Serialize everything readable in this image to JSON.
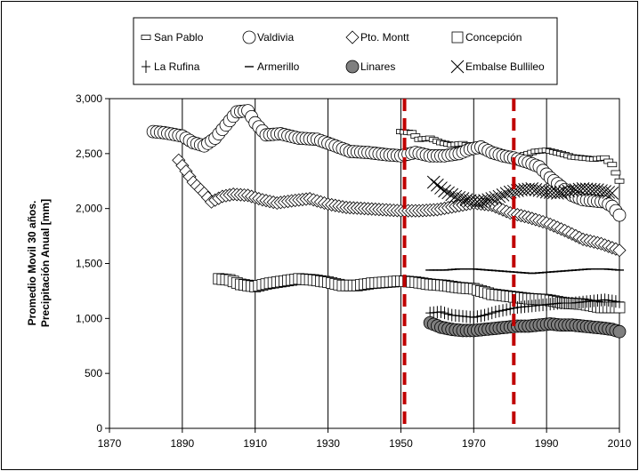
{
  "chart_data": {
    "type": "scatter",
    "title": "",
    "xlabel": "",
    "ylabel": [
      "Promedio Movil 30 años.",
      "Precipitación Anual [mm]"
    ],
    "xlim": [
      1870,
      2010
    ],
    "ylim": [
      0,
      3000
    ],
    "x_ticks": [
      "1870",
      "1890",
      "1910",
      "1930",
      "1950",
      "1970",
      "1990",
      "2010"
    ],
    "y_ticks": [
      "0",
      "500",
      "1,000",
      "1,500",
      "2,000",
      "2,500",
      "3,000"
    ],
    "x_tick_values": [
      1870,
      1890,
      1910,
      1930,
      1950,
      1970,
      1990,
      2010
    ],
    "y_tick_values": [
      0,
      500,
      1000,
      1500,
      2000,
      2500,
      3000
    ],
    "grid": "vertical",
    "legend_position": "top",
    "reference_lines": [
      {
        "x": 1951,
        "color": "#c00000",
        "style": "dashed"
      },
      {
        "x": 1981,
        "color": "#c00000",
        "style": "dashed"
      }
    ],
    "series": [
      {
        "name": "San Pablo",
        "marker": "dash-box",
        "x_start": 1950,
        "x_end": 2010,
        "keys": [
          [
            1950,
            2700
          ],
          [
            1953,
            2690
          ],
          [
            1955,
            2630
          ],
          [
            1958,
            2640
          ],
          [
            1961,
            2600
          ],
          [
            1964,
            2580
          ],
          [
            1967,
            2590
          ],
          [
            1970,
            2560
          ],
          [
            1973,
            2520
          ],
          [
            1976,
            2480
          ],
          [
            1980,
            2460
          ],
          [
            1983,
            2480
          ],
          [
            1987,
            2520
          ],
          [
            1990,
            2530
          ],
          [
            1994,
            2500
          ],
          [
            1997,
            2470
          ],
          [
            2000,
            2460
          ],
          [
            2003,
            2450
          ],
          [
            2006,
            2460
          ],
          [
            2008,
            2400
          ],
          [
            2010,
            2250
          ]
        ]
      },
      {
        "name": "Valdivia",
        "marker": "circle-open",
        "x_start": 1882,
        "x_end": 2010,
        "keys": [
          [
            1882,
            2700
          ],
          [
            1885,
            2690
          ],
          [
            1890,
            2660
          ],
          [
            1893,
            2600
          ],
          [
            1896,
            2570
          ],
          [
            1899,
            2640
          ],
          [
            1901,
            2720
          ],
          [
            1903,
            2800
          ],
          [
            1905,
            2880
          ],
          [
            1908,
            2890
          ],
          [
            1910,
            2780
          ],
          [
            1913,
            2670
          ],
          [
            1917,
            2680
          ],
          [
            1922,
            2640
          ],
          [
            1927,
            2630
          ],
          [
            1932,
            2570
          ],
          [
            1936,
            2520
          ],
          [
            1941,
            2510
          ],
          [
            1946,
            2490
          ],
          [
            1950,
            2480
          ],
          [
            1954,
            2510
          ],
          [
            1958,
            2480
          ],
          [
            1962,
            2480
          ],
          [
            1966,
            2500
          ],
          [
            1969,
            2540
          ],
          [
            1972,
            2560
          ],
          [
            1975,
            2510
          ],
          [
            1978,
            2480
          ],
          [
            1981,
            2460
          ],
          [
            1985,
            2420
          ],
          [
            1988,
            2380
          ],
          [
            1991,
            2280
          ],
          [
            1994,
            2200
          ],
          [
            1997,
            2120
          ],
          [
            2000,
            2080
          ],
          [
            2003,
            2070
          ],
          [
            2006,
            2060
          ],
          [
            2008,
            2020
          ],
          [
            2010,
            1940
          ]
        ]
      },
      {
        "name": "Pto. Montt",
        "marker": "diamond-open",
        "x_start": 1889,
        "x_end": 2010,
        "keys": [
          [
            1889,
            2440
          ],
          [
            1891,
            2340
          ],
          [
            1893,
            2240
          ],
          [
            1896,
            2140
          ],
          [
            1898,
            2060
          ],
          [
            1901,
            2110
          ],
          [
            1904,
            2130
          ],
          [
            1908,
            2120
          ],
          [
            1912,
            2080
          ],
          [
            1916,
            2050
          ],
          [
            1920,
            2070
          ],
          [
            1925,
            2090
          ],
          [
            1930,
            2040
          ],
          [
            1935,
            2010
          ],
          [
            1940,
            2000
          ],
          [
            1945,
            1990
          ],
          [
            1950,
            1980
          ],
          [
            1955,
            1980
          ],
          [
            1960,
            1990
          ],
          [
            1965,
            2020
          ],
          [
            1970,
            2050
          ],
          [
            1975,
            2030
          ],
          [
            1980,
            1960
          ],
          [
            1985,
            1920
          ],
          [
            1990,
            1870
          ],
          [
            1995,
            1800
          ],
          [
            2000,
            1720
          ],
          [
            2005,
            1680
          ],
          [
            2010,
            1620
          ]
        ]
      },
      {
        "name": "Concepción",
        "marker": "square-open",
        "x_start": 1900,
        "x_end": 2010,
        "keys": [
          [
            1900,
            1360
          ],
          [
            1903,
            1350
          ],
          [
            1906,
            1310
          ],
          [
            1910,
            1290
          ],
          [
            1914,
            1320
          ],
          [
            1918,
            1340
          ],
          [
            1922,
            1360
          ],
          [
            1926,
            1350
          ],
          [
            1930,
            1330
          ],
          [
            1934,
            1300
          ],
          [
            1938,
            1300
          ],
          [
            1942,
            1320
          ],
          [
            1946,
            1330
          ],
          [
            1950,
            1340
          ],
          [
            1954,
            1330
          ],
          [
            1958,
            1310
          ],
          [
            1962,
            1300
          ],
          [
            1966,
            1280
          ],
          [
            1970,
            1270
          ],
          [
            1975,
            1220
          ],
          [
            1980,
            1200
          ],
          [
            1985,
            1180
          ],
          [
            1990,
            1170
          ],
          [
            1995,
            1140
          ],
          [
            2000,
            1130
          ],
          [
            2005,
            1100
          ],
          [
            2010,
            1100
          ]
        ]
      },
      {
        "name": "La Rufina",
        "marker": "plus",
        "x_start": 1958,
        "x_end": 2010,
        "keys": [
          [
            1958,
            1050
          ],
          [
            1961,
            1060
          ],
          [
            1964,
            1030
          ],
          [
            1967,
            1020
          ],
          [
            1970,
            1010
          ],
          [
            1973,
            1030
          ],
          [
            1976,
            1060
          ],
          [
            1979,
            1080
          ],
          [
            1982,
            1100
          ],
          [
            1985,
            1110
          ],
          [
            1988,
            1120
          ],
          [
            1991,
            1130
          ],
          [
            1994,
            1140
          ],
          [
            1997,
            1140
          ],
          [
            2000,
            1150
          ],
          [
            2003,
            1160
          ],
          [
            2006,
            1170
          ],
          [
            2008,
            1160
          ],
          [
            2010,
            1150
          ]
        ]
      },
      {
        "name": "Armerillo",
        "marker": "dash",
        "x_start": 1958,
        "x_end": 2010,
        "keys": [
          [
            1958,
            1440
          ],
          [
            1962,
            1440
          ],
          [
            1966,
            1450
          ],
          [
            1970,
            1450
          ],
          [
            1974,
            1440
          ],
          [
            1978,
            1430
          ],
          [
            1982,
            1420
          ],
          [
            1986,
            1410
          ],
          [
            1990,
            1420
          ],
          [
            1994,
            1430
          ],
          [
            1998,
            1440
          ],
          [
            2002,
            1450
          ],
          [
            2006,
            1450
          ],
          [
            2010,
            1440
          ]
        ]
      },
      {
        "name": "Linares",
        "marker": "circle-filled",
        "x_start": 1958,
        "x_end": 2010,
        "keys": [
          [
            1958,
            960
          ],
          [
            1961,
            920
          ],
          [
            1964,
            900
          ],
          [
            1967,
            890
          ],
          [
            1970,
            890
          ],
          [
            1973,
            900
          ],
          [
            1976,
            910
          ],
          [
            1979,
            920
          ],
          [
            1982,
            930
          ],
          [
            1985,
            930
          ],
          [
            1988,
            940
          ],
          [
            1991,
            950
          ],
          [
            1994,
            940
          ],
          [
            1997,
            940
          ],
          [
            2000,
            930
          ],
          [
            2003,
            920
          ],
          [
            2006,
            910
          ],
          [
            2008,
            900
          ],
          [
            2010,
            880
          ]
        ]
      },
      {
        "name": "Embalse Bullileo",
        "marker": "x",
        "x_start": 1959,
        "x_end": 2008,
        "keys": [
          [
            1959,
            2240
          ],
          [
            1962,
            2160
          ],
          [
            1965,
            2110
          ],
          [
            1968,
            2080
          ],
          [
            1971,
            2060
          ],
          [
            1974,
            2080
          ],
          [
            1977,
            2110
          ],
          [
            1980,
            2150
          ],
          [
            1983,
            2170
          ],
          [
            1986,
            2180
          ],
          [
            1990,
            2150
          ],
          [
            1993,
            2140
          ],
          [
            1996,
            2160
          ],
          [
            2000,
            2180
          ],
          [
            2004,
            2170
          ],
          [
            2008,
            2140
          ]
        ]
      }
    ]
  }
}
